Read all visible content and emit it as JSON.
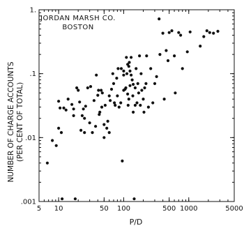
{
  "chart_data": {
    "type": "scatter",
    "annotation": [
      "JORDAN MARSH CO.",
      "BOSTON"
    ],
    "xlabel": "P/D",
    "ylabel": [
      "NUMBER OF CHARGE ACCOUNTS",
      "(PER CENT OF TOTAL)"
    ],
    "xscale": "log",
    "yscale": "log",
    "xlim": [
      5,
      5000
    ],
    "ylim": [
      0.001,
      1
    ],
    "xticks": [
      {
        "value": 5,
        "label": "5"
      },
      {
        "value": 10,
        "label": "10"
      },
      {
        "value": 50,
        "label": "50"
      },
      {
        "value": 100,
        "label": "100"
      },
      {
        "value": 500,
        "label": "500"
      },
      {
        "value": 1000,
        "label": "1000"
      },
      {
        "value": 5000,
        "label": "5000"
      }
    ],
    "yticks": [
      {
        "value": 0.001,
        "label": ".001"
      },
      {
        "value": 0.01,
        "label": ".01"
      },
      {
        "value": 0.1,
        "label": ".1"
      },
      {
        "value": 1,
        "label": "1."
      }
    ],
    "grid": false,
    "x": [
      6.7,
      8,
      9.2,
      10,
      10,
      10.5,
      11,
      11.3,
      12,
      13,
      14,
      16,
      17,
      17,
      18,
      19,
      20,
      21,
      22,
      23,
      24,
      25,
      25,
      26,
      28,
      30,
      31,
      33,
      35,
      37,
      38,
      40,
      41,
      42,
      43,
      45,
      46,
      47,
      50,
      50,
      52,
      55,
      57,
      60,
      60,
      62,
      65,
      68,
      70,
      72,
      74,
      78,
      80,
      82,
      85,
      90,
      92,
      95,
      100,
      100,
      100,
      105,
      108,
      110,
      112,
      115,
      115,
      117,
      120,
      120,
      122,
      125,
      125,
      130,
      130,
      135,
      138,
      140,
      140,
      145,
      150,
      150,
      155,
      160,
      165,
      170,
      175,
      180,
      185,
      190,
      200,
      205,
      210,
      220,
      225,
      240,
      260,
      280,
      300,
      320,
      350,
      360,
      400,
      420,
      450,
      480,
      500,
      550,
      600,
      620,
      700,
      750,
      800,
      950,
      1050,
      1500,
      1700,
      1900,
      2100,
      2400,
      2800
    ],
    "y": [
      0.004,
      0.009,
      0.0075,
      0.014,
      0.037,
      0.029,
      0.012,
      0.0011,
      0.029,
      0.027,
      0.04,
      0.033,
      0.028,
      0.022,
      0.0011,
      0.06,
      0.055,
      0.036,
      0.013,
      0.022,
      0.028,
      0.012,
      0.02,
      0.031,
      0.06,
      0.017,
      0.063,
      0.012,
      0.038,
      0.015,
      0.095,
      0.046,
      0.055,
      0.023,
      0.025,
      0.055,
      0.03,
      0.05,
      0.016,
      0.01,
      0.032,
      0.014,
      0.018,
      0.012,
      0.045,
      0.038,
      0.057,
      0.1,
      0.07,
      0.035,
      0.032,
      0.085,
      0.045,
      0.12,
      0.03,
      0.035,
      0.12,
      0.0043,
      0.11,
      0.095,
      0.055,
      0.057,
      0.06,
      0.18,
      0.1,
      0.048,
      0.14,
      0.032,
      0.04,
      0.13,
      0.15,
      0.11,
      0.065,
      0.095,
      0.18,
      0.08,
      0.045,
      0.068,
      0.025,
      0.0011,
      0.06,
      0.032,
      0.12,
      0.035,
      0.07,
      0.05,
      0.19,
      0.032,
      0.1,
      0.055,
      0.04,
      0.025,
      0.06,
      0.07,
      0.19,
      0.03,
      0.12,
      0.035,
      0.07,
      0.09,
      0.72,
      0.2,
      0.43,
      0.04,
      0.23,
      0.16,
      0.44,
      0.47,
      0.19,
      0.05,
      0.44,
      0.4,
      0.12,
      0.22,
      0.45,
      0.27,
      0.38,
      0.47,
      0.44,
      0.43,
      0.46
    ]
  }
}
